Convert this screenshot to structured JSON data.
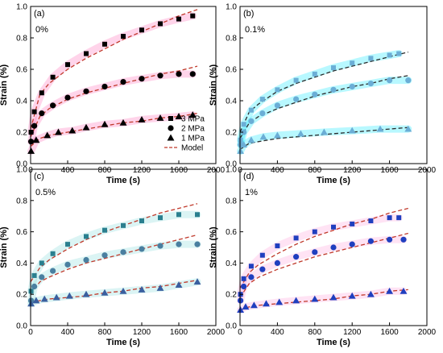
{
  "chart_data": [
    {
      "type": "scatter",
      "panel": "(a)",
      "annotation": "0%",
      "xlabel": "Time (s)",
      "ylabel": "Strain (%)",
      "xlim": [
        0,
        2000
      ],
      "ylim": [
        0,
        1.0
      ],
      "xticks": [
        "0",
        "400",
        "800",
        "1200",
        "1600",
        "2000"
      ],
      "yticks": [
        "0.0",
        "0.2",
        "0.4",
        "0.6",
        "0.8",
        "1.0"
      ],
      "legend": {
        "placement": "bottom-right",
        "entries": [
          {
            "label": "3 MPa",
            "marker": "square"
          },
          {
            "label": "2 MPa",
            "marker": "circle"
          },
          {
            "label": "1 MPa",
            "marker": "triangle"
          },
          {
            "label": "Model",
            "marker": "dashed-line"
          }
        ]
      },
      "series": [
        {
          "name": "3 MPa",
          "marker": "square",
          "color": "#000000",
          "x": [
            5,
            40,
            120,
            240,
            400,
            600,
            800,
            1000,
            1200,
            1400,
            1600,
            1750
          ],
          "y": [
            0.2,
            0.33,
            0.45,
            0.55,
            0.63,
            0.7,
            0.76,
            0.81,
            0.85,
            0.89,
            0.92,
            0.94
          ]
        },
        {
          "name": "2 MPa",
          "marker": "circle",
          "color": "#000000",
          "x": [
            5,
            40,
            120,
            240,
            400,
            600,
            800,
            1000,
            1200,
            1400,
            1600,
            1750
          ],
          "y": [
            0.14,
            0.24,
            0.32,
            0.37,
            0.42,
            0.46,
            0.49,
            0.52,
            0.54,
            0.56,
            0.57,
            0.57
          ]
        },
        {
          "name": "1 MPa",
          "marker": "triangle",
          "color": "#000000",
          "x": [
            5,
            60,
            180,
            300,
            450,
            600,
            800,
            1000,
            1200,
            1400,
            1600,
            1750
          ],
          "y": [
            0.08,
            0.15,
            0.18,
            0.2,
            0.21,
            0.23,
            0.25,
            0.26,
            0.28,
            0.29,
            0.3,
            0.31
          ]
        }
      ],
      "model": [
        {
          "x": [
            0,
            100,
            200,
            400,
            600,
            800,
            1000,
            1200,
            1400,
            1600,
            1800
          ],
          "y": [
            0.22,
            0.44,
            0.51,
            0.6,
            0.67,
            0.73,
            0.79,
            0.84,
            0.89,
            0.94,
            0.98
          ]
        },
        {
          "x": [
            0,
            100,
            200,
            400,
            600,
            800,
            1000,
            1200,
            1400,
            1600,
            1800
          ],
          "y": [
            0.17,
            0.3,
            0.35,
            0.41,
            0.45,
            0.48,
            0.51,
            0.54,
            0.57,
            0.59,
            0.62
          ]
        },
        {
          "x": [
            0,
            100,
            200,
            400,
            600,
            800,
            1000,
            1200,
            1400,
            1600,
            1800
          ],
          "y": [
            0.11,
            0.16,
            0.18,
            0.2,
            0.22,
            0.24,
            0.26,
            0.27,
            0.29,
            0.3,
            0.32
          ]
        }
      ],
      "model_color": "#c0392b",
      "data_halo_color": "#ff66b3"
    },
    {
      "type": "scatter",
      "panel": "(b)",
      "annotation": "0.1%",
      "xlabel": "Time (s)",
      "ylabel": "Strain (%)",
      "xlim": [
        0,
        2000
      ],
      "ylim": [
        0,
        1.0
      ],
      "xticks": [
        "0",
        "400",
        "800",
        "1200",
        "1600",
        "2000"
      ],
      "yticks": [
        "0.0",
        "0.2",
        "0.4",
        "0.6",
        "0.8",
        "1.0"
      ],
      "series": [
        {
          "name": "3 MPa",
          "marker": "square",
          "color": "#6baed6",
          "x": [
            5,
            40,
            120,
            240,
            400,
            600,
            800,
            1000,
            1200,
            1400,
            1600,
            1700
          ],
          "y": [
            0.15,
            0.25,
            0.34,
            0.41,
            0.47,
            0.53,
            0.57,
            0.61,
            0.64,
            0.67,
            0.69,
            0.7
          ]
        },
        {
          "name": "2 MPa",
          "marker": "circle",
          "color": "#6baed6",
          "x": [
            5,
            40,
            120,
            240,
            400,
            600,
            800,
            1000,
            1200,
            1400,
            1600,
            1800
          ],
          "y": [
            0.12,
            0.2,
            0.27,
            0.32,
            0.37,
            0.41,
            0.44,
            0.47,
            0.49,
            0.51,
            0.53,
            0.53
          ]
        },
        {
          "name": "1 MPa",
          "marker": "triangle",
          "color": "#6baed6",
          "x": [
            5,
            40,
            120,
            250,
            400,
            650,
            900,
            1200,
            1500,
            1800
          ],
          "y": [
            0.08,
            0.12,
            0.15,
            0.17,
            0.18,
            0.19,
            0.2,
            0.21,
            0.22,
            0.22
          ]
        }
      ],
      "model": [
        {
          "x": [
            0,
            100,
            200,
            400,
            600,
            800,
            1000,
            1200,
            1400,
            1600,
            1800
          ],
          "y": [
            0.2,
            0.33,
            0.38,
            0.46,
            0.51,
            0.55,
            0.59,
            0.62,
            0.65,
            0.68,
            0.71
          ]
        },
        {
          "x": [
            0,
            100,
            200,
            400,
            600,
            800,
            1000,
            1200,
            1400,
            1600,
            1800
          ],
          "y": [
            0.16,
            0.26,
            0.3,
            0.35,
            0.39,
            0.43,
            0.46,
            0.49,
            0.51,
            0.54,
            0.56
          ]
        },
        {
          "x": [
            0,
            100,
            200,
            400,
            600,
            800,
            1000,
            1200,
            1400,
            1600,
            1800
          ],
          "y": [
            0.09,
            0.13,
            0.14,
            0.16,
            0.17,
            0.18,
            0.19,
            0.2,
            0.21,
            0.22,
            0.23
          ]
        }
      ],
      "model_color": "#2b2b2b",
      "data_halo_color": "#00e5ff"
    },
    {
      "type": "scatter",
      "panel": "(c)",
      "annotation": "0.5%",
      "xlabel": "Time (s)",
      "ylabel": "Strain (%)",
      "xlim": [
        0,
        2000
      ],
      "ylim": [
        0,
        1.0
      ],
      "xticks": [
        "0",
        "400",
        "800",
        "1200",
        "1600",
        "2000"
      ],
      "yticks": [
        "0.0",
        "0.2",
        "0.4",
        "0.6",
        "0.8",
        "1.0"
      ],
      "series": [
        {
          "name": "3 MPa",
          "marker": "square",
          "color": "#2a7f8f",
          "x": [
            5,
            40,
            120,
            240,
            400,
            600,
            800,
            1000,
            1200,
            1400,
            1600,
            1800
          ],
          "y": [
            0.22,
            0.32,
            0.4,
            0.46,
            0.52,
            0.57,
            0.61,
            0.64,
            0.67,
            0.69,
            0.71,
            0.71
          ]
        },
        {
          "name": "2 MPa",
          "marker": "circle",
          "color": "#4a7fa0",
          "x": [
            5,
            40,
            120,
            240,
            400,
            600,
            800,
            1000,
            1200,
            1400,
            1600,
            1800
          ],
          "y": [
            0.16,
            0.25,
            0.31,
            0.35,
            0.39,
            0.42,
            0.45,
            0.47,
            0.49,
            0.51,
            0.52,
            0.52
          ]
        },
        {
          "name": "1 MPa",
          "marker": "triangle",
          "color": "#3a5f9f",
          "x": [
            5,
            60,
            150,
            280,
            420,
            600,
            800,
            1000,
            1200,
            1400,
            1600,
            1800
          ],
          "y": [
            0.14,
            0.16,
            0.17,
            0.18,
            0.19,
            0.2,
            0.21,
            0.22,
            0.23,
            0.24,
            0.26,
            0.28
          ]
        }
      ],
      "model": [
        {
          "x": [
            0,
            100,
            200,
            400,
            600,
            800,
            1000,
            1200,
            1400,
            1600,
            1800
          ],
          "y": [
            0.28,
            0.37,
            0.42,
            0.49,
            0.55,
            0.6,
            0.64,
            0.68,
            0.72,
            0.75,
            0.78
          ]
        },
        {
          "x": [
            0,
            100,
            200,
            400,
            600,
            800,
            1000,
            1200,
            1400,
            1600,
            1800
          ],
          "y": [
            0.2,
            0.28,
            0.31,
            0.36,
            0.4,
            0.43,
            0.46,
            0.49,
            0.52,
            0.55,
            0.58
          ]
        },
        {
          "x": [
            0,
            100,
            200,
            400,
            600,
            800,
            1000,
            1200,
            1400,
            1600,
            1800
          ],
          "y": [
            0.15,
            0.16,
            0.17,
            0.18,
            0.19,
            0.21,
            0.22,
            0.24,
            0.25,
            0.27,
            0.29
          ]
        }
      ],
      "model_color": "#c0392b",
      "data_halo_color": "#7fd8d8"
    },
    {
      "type": "scatter",
      "panel": "(d)",
      "annotation": "1%",
      "xlabel": "Time (s)",
      "ylabel": "Strain (%)",
      "xlim": [
        0,
        2000
      ],
      "ylim": [
        0,
        1.0
      ],
      "xticks": [
        "0",
        "400",
        "800",
        "1200",
        "1600",
        "2000"
      ],
      "yticks": [
        "0.0",
        "0.2",
        "0.4",
        "0.6",
        "0.8",
        "1.0"
      ],
      "series": [
        {
          "name": "3 MPa",
          "marker": "square",
          "color": "#1f3fbf",
          "x": [
            5,
            40,
            120,
            240,
            400,
            600,
            800,
            1000,
            1200,
            1400,
            1600,
            1700
          ],
          "y": [
            0.2,
            0.3,
            0.38,
            0.45,
            0.51,
            0.56,
            0.6,
            0.63,
            0.65,
            0.67,
            0.69,
            0.69
          ]
        },
        {
          "name": "2 MPa",
          "marker": "circle",
          "color": "#1f3fbf",
          "x": [
            5,
            40,
            120,
            240,
            400,
            600,
            800,
            1000,
            1200,
            1400,
            1600,
            1750
          ],
          "y": [
            0.16,
            0.25,
            0.31,
            0.36,
            0.4,
            0.44,
            0.47,
            0.5,
            0.52,
            0.54,
            0.55,
            0.55
          ]
        },
        {
          "name": "1 MPa",
          "marker": "triangle",
          "color": "#1f3fbf",
          "x": [
            5,
            60,
            150,
            280,
            420,
            600,
            800,
            1000,
            1200,
            1400,
            1600,
            1750
          ],
          "y": [
            0.1,
            0.12,
            0.13,
            0.14,
            0.15,
            0.16,
            0.17,
            0.18,
            0.19,
            0.2,
            0.22,
            0.22
          ]
        }
      ],
      "model": [
        {
          "x": [
            0,
            100,
            200,
            400,
            600,
            800,
            1000,
            1200,
            1400,
            1600,
            1800
          ],
          "y": [
            0.24,
            0.34,
            0.39,
            0.46,
            0.52,
            0.57,
            0.61,
            0.65,
            0.68,
            0.72,
            0.75
          ]
        },
        {
          "x": [
            0,
            100,
            200,
            400,
            600,
            800,
            1000,
            1200,
            1400,
            1600,
            1800
          ],
          "y": [
            0.18,
            0.27,
            0.31,
            0.36,
            0.4,
            0.44,
            0.47,
            0.5,
            0.53,
            0.56,
            0.59
          ]
        },
        {
          "x": [
            0,
            100,
            200,
            400,
            600,
            800,
            1000,
            1200,
            1400,
            1600,
            1800
          ],
          "y": [
            0.1,
            0.12,
            0.13,
            0.14,
            0.15,
            0.16,
            0.17,
            0.19,
            0.2,
            0.22,
            0.23
          ]
        }
      ],
      "model_color": "#c0392b",
      "data_halo_color": "#ff9ad6"
    }
  ]
}
